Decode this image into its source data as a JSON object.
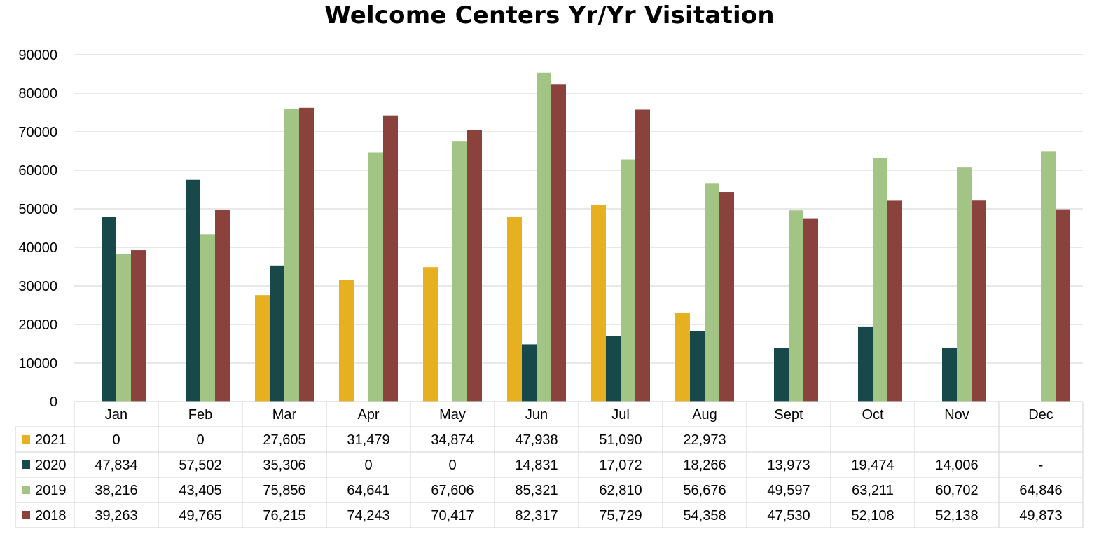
{
  "chart_data": {
    "type": "bar",
    "title": "Welcome Centers Yr/Yr Visitation",
    "categories": [
      "Jan",
      "Feb",
      "Mar",
      "Apr",
      "May",
      "Jun",
      "Jul",
      "Aug",
      "Sept",
      "Oct",
      "Nov",
      "Dec"
    ],
    "y_ticks": [
      "0",
      "10000",
      "20000",
      "30000",
      "40000",
      "50000",
      "60000",
      "70000",
      "80000",
      "90000"
    ],
    "ylim": [
      0,
      90000
    ],
    "grid": true,
    "legend_placement": "data-table-left",
    "series": [
      {
        "name": "2021",
        "color": "#E6B020",
        "values": [
          0,
          0,
          27605,
          31479,
          34874,
          47938,
          51090,
          22973,
          null,
          null,
          null,
          null
        ],
        "labels": [
          "0",
          "0",
          "27,605",
          "31,479",
          "34,874",
          "47,938",
          "51,090",
          "22,973",
          "",
          "",
          "",
          ""
        ]
      },
      {
        "name": "2020",
        "color": "#17484A",
        "values": [
          47834,
          57502,
          35306,
          0,
          0,
          14831,
          17072,
          18266,
          13973,
          19474,
          14006,
          null
        ],
        "labels": [
          "47,834",
          "57,502",
          "35,306",
          "0",
          "0",
          "14,831",
          "17,072",
          "18,266",
          "13,973",
          "19,474",
          "14,006",
          "-"
        ]
      },
      {
        "name": "2019",
        "color": "#A2C585",
        "values": [
          38216,
          43405,
          75856,
          64641,
          67606,
          85321,
          62810,
          56676,
          49597,
          63211,
          60702,
          64846
        ],
        "labels": [
          "38,216",
          "43,405",
          "75,856",
          "64,641",
          "67,606",
          "85,321",
          "62,810",
          "56,676",
          "49,597",
          "63,211",
          "60,702",
          "64,846"
        ]
      },
      {
        "name": "2018",
        "color": "#8B423D",
        "values": [
          39263,
          49765,
          76215,
          74243,
          70417,
          82317,
          75729,
          54358,
          47530,
          52108,
          52138,
          49873
        ],
        "labels": [
          "39,263",
          "49,765",
          "76,215",
          "74,243",
          "70,417",
          "82,317",
          "75,729",
          "54,358",
          "47,530",
          "52,108",
          "52,138",
          "49,873"
        ]
      }
    ]
  }
}
